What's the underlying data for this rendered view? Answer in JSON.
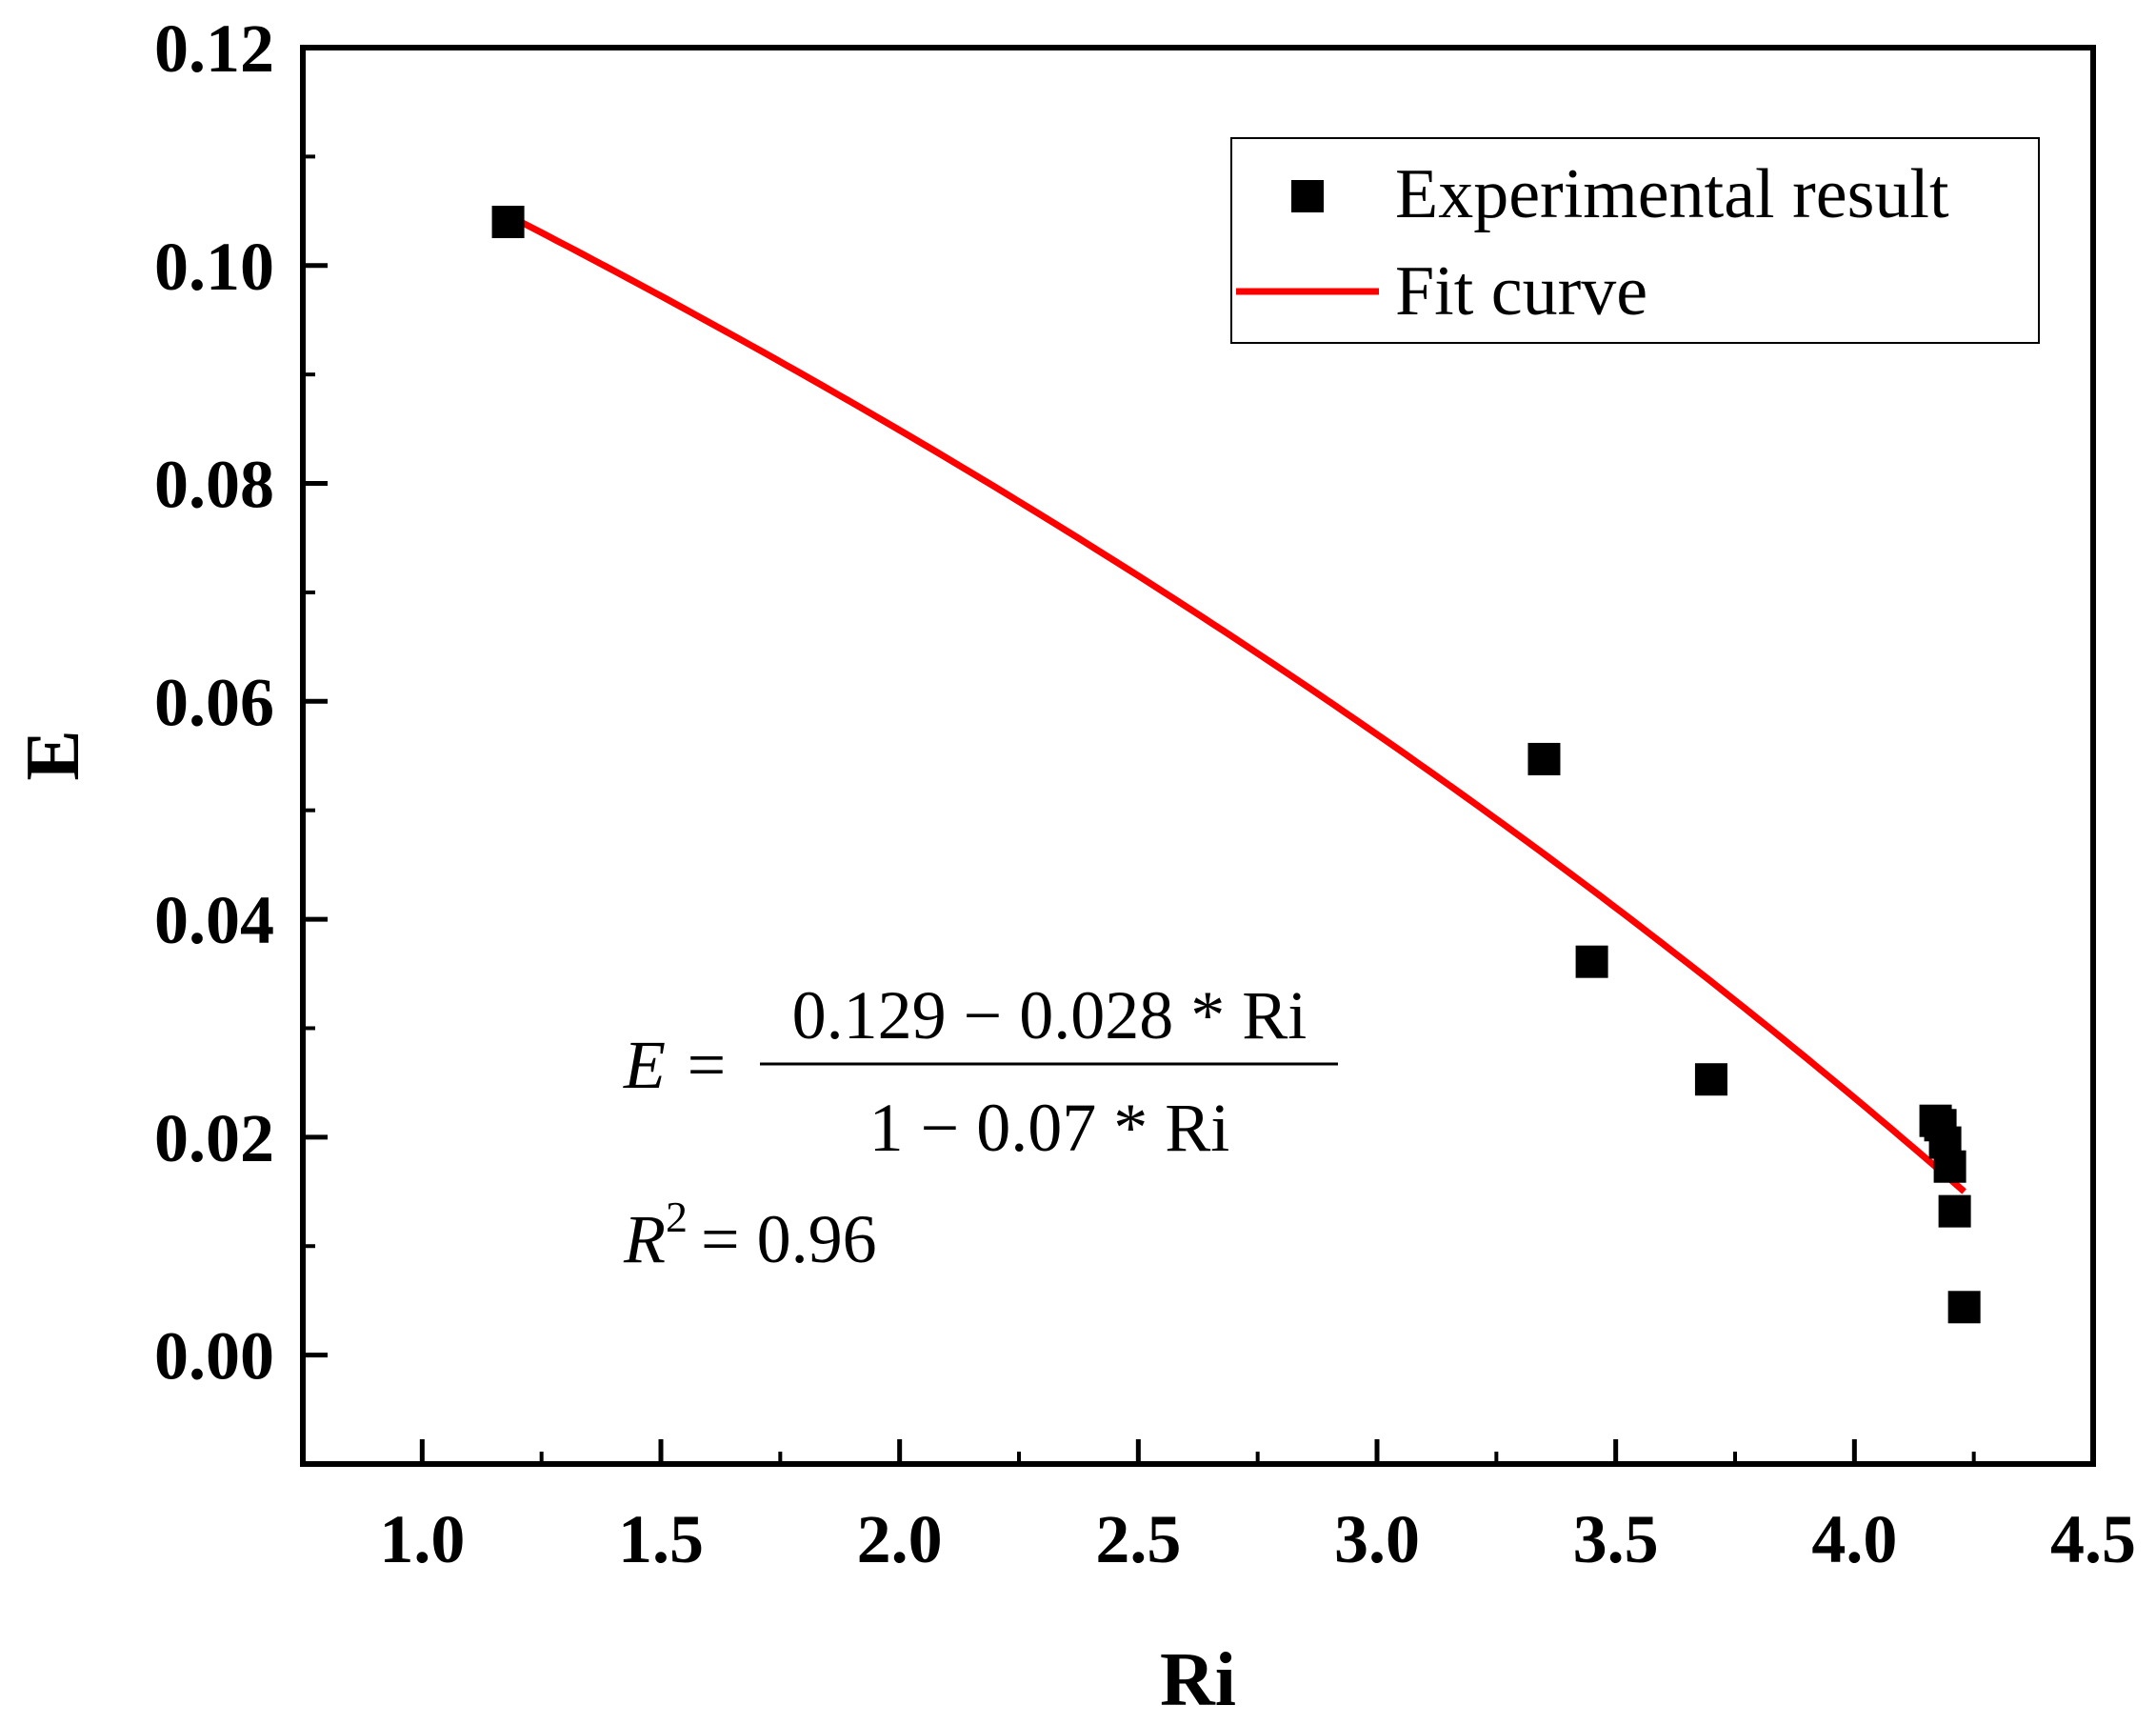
{
  "chart_data": {
    "type": "scatter",
    "title": "",
    "xlabel": "Ri",
    "ylabel": "E",
    "xlim": [
      0.75,
      4.5
    ],
    "ylim": [
      -0.01,
      0.12
    ],
    "x_ticks": [
      1.0,
      1.5,
      2.0,
      2.5,
      3.0,
      3.5,
      4.0,
      4.5
    ],
    "x_tick_labels": [
      "1.0",
      "1.5",
      "2.0",
      "2.5",
      "3.0",
      "3.5",
      "4.0",
      "4.5"
    ],
    "y_ticks": [
      0.0,
      0.02,
      0.04,
      0.06,
      0.08,
      0.1,
      0.12
    ],
    "y_tick_labels": [
      "0.00",
      "0.02",
      "0.04",
      "0.06",
      "0.08",
      "0.10",
      "0.12"
    ],
    "grid": false,
    "legend_position": "top-right",
    "series": [
      {
        "name": "Experimental result",
        "kind": "scatter",
        "marker": "square",
        "color": "#000000",
        "points": [
          {
            "x": 1.18,
            "y": 0.104
          },
          {
            "x": 3.35,
            "y": 0.0547
          },
          {
            "x": 3.45,
            "y": 0.0361
          },
          {
            "x": 3.7,
            "y": 0.0253
          },
          {
            "x": 4.17,
            "y": 0.0215
          },
          {
            "x": 4.18,
            "y": 0.0211
          },
          {
            "x": 4.19,
            "y": 0.0195
          },
          {
            "x": 4.2,
            "y": 0.0173
          },
          {
            "x": 4.21,
            "y": 0.0132
          },
          {
            "x": 4.23,
            "y": 0.0044
          }
        ]
      },
      {
        "name": "Fit curve",
        "kind": "line",
        "color": "#ff0000",
        "formula": {
          "a": 0.129,
          "b": 0.028,
          "c": 0.07
        },
        "x_range": [
          1.18,
          4.23
        ]
      }
    ],
    "annotation": {
      "lhs": "E =",
      "numerator": "0.129 − 0.028 * Ri",
      "denominator": "1 − 0.07 * Ri",
      "r2_lhs": "R",
      "r2_sup": "2",
      "r2_rhs": "= 0.96"
    }
  }
}
